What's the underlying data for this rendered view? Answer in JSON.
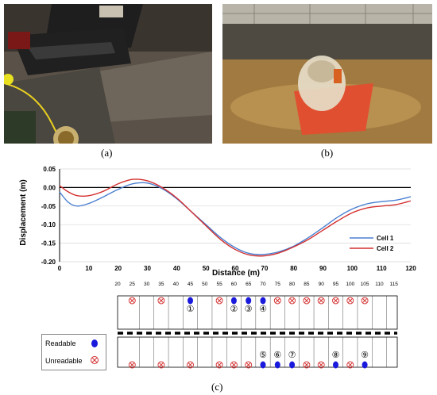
{
  "figure": {
    "captions": [
      "(a)",
      "(b)",
      "(c)"
    ]
  },
  "chart_data": {
    "type": "line",
    "title": "",
    "xlabel": "Distance (m)",
    "ylabel": "Displacement (m)",
    "xlim": [
      0,
      120
    ],
    "ylim": [
      -0.2,
      0.05
    ],
    "x_ticks": [
      0,
      10,
      20,
      30,
      40,
      50,
      60,
      70,
      80,
      90,
      100,
      110,
      120
    ],
    "y_ticks": [
      0.05,
      0.0,
      -0.05,
      -0.1,
      -0.15,
      -0.2
    ],
    "x_tick_labels": [
      "0",
      "10",
      "20",
      "30",
      "40",
      "50",
      "60",
      "70",
      "80",
      "90",
      "100",
      "110",
      "120"
    ],
    "y_tick_labels": [
      "0.05",
      "0.00",
      "-0.05",
      "-0.10",
      "-0.15",
      "-0.20"
    ],
    "legend_position": "right",
    "series": [
      {
        "name": "Cell 1",
        "color": "#4a7fd0",
        "x": [
          0,
          3,
          6,
          10,
          15,
          20,
          25,
          30,
          35,
          40,
          45,
          50,
          55,
          60,
          65,
          70,
          75,
          80,
          85,
          90,
          95,
          100,
          105,
          110,
          115,
          120
        ],
        "y": [
          -0.012,
          -0.04,
          -0.05,
          -0.043,
          -0.025,
          -0.005,
          0.01,
          0.012,
          -0.003,
          -0.03,
          -0.065,
          -0.1,
          -0.135,
          -0.162,
          -0.178,
          -0.18,
          -0.173,
          -0.158,
          -0.135,
          -0.108,
          -0.08,
          -0.058,
          -0.044,
          -0.038,
          -0.034,
          -0.025
        ]
      },
      {
        "name": "Cell 2",
        "color": "#d43030",
        "x": [
          0,
          3,
          6,
          10,
          15,
          20,
          25,
          30,
          35,
          40,
          45,
          50,
          55,
          60,
          65,
          70,
          75,
          80,
          85,
          90,
          95,
          100,
          105,
          110,
          115,
          120
        ],
        "y": [
          0.005,
          -0.012,
          -0.022,
          -0.022,
          -0.01,
          0.01,
          0.022,
          0.018,
          0.0,
          -0.028,
          -0.065,
          -0.103,
          -0.14,
          -0.167,
          -0.182,
          -0.184,
          -0.176,
          -0.16,
          -0.14,
          -0.115,
          -0.09,
          -0.068,
          -0.055,
          -0.05,
          -0.046,
          -0.036
        ]
      }
    ]
  },
  "layout": {
    "distances": [
      "20",
      "25",
      "30",
      "35",
      "40",
      "45",
      "50",
      "55",
      "60",
      "65",
      "70",
      "75",
      "80",
      "85",
      "90",
      "95",
      "100",
      "105",
      "110",
      "115"
    ],
    "top_row_status": [
      "",
      "U",
      "",
      "U",
      "",
      "R",
      "",
      "U",
      "R",
      "R",
      "R",
      "U",
      "U",
      "U",
      "U",
      "U",
      "U",
      "U",
      "",
      ""
    ],
    "bottom_row_status": [
      "",
      "U",
      "",
      "U",
      "",
      "U",
      "",
      "U",
      "U",
      "U",
      "R",
      "R",
      "R",
      "U",
      "U",
      "R",
      "U",
      "R",
      "",
      ""
    ],
    "top_labels": [
      {
        "index": 5,
        "text": "①"
      },
      {
        "index": 8,
        "text": "②"
      },
      {
        "index": 9,
        "text": "③"
      },
      {
        "index": 10,
        "text": "④"
      }
    ],
    "bottom_labels": [
      {
        "index": 10,
        "text": "⑤"
      },
      {
        "index": 11,
        "text": "⑥"
      },
      {
        "index": 12,
        "text": "⑦"
      },
      {
        "index": 15,
        "text": "⑧"
      },
      {
        "index": 17,
        "text": "⑨"
      }
    ],
    "legend": {
      "readable": "Readable",
      "unreadable": "Unreadable"
    },
    "colors": {
      "readable": "#1a1adc",
      "unreadable": "#d43030"
    }
  }
}
